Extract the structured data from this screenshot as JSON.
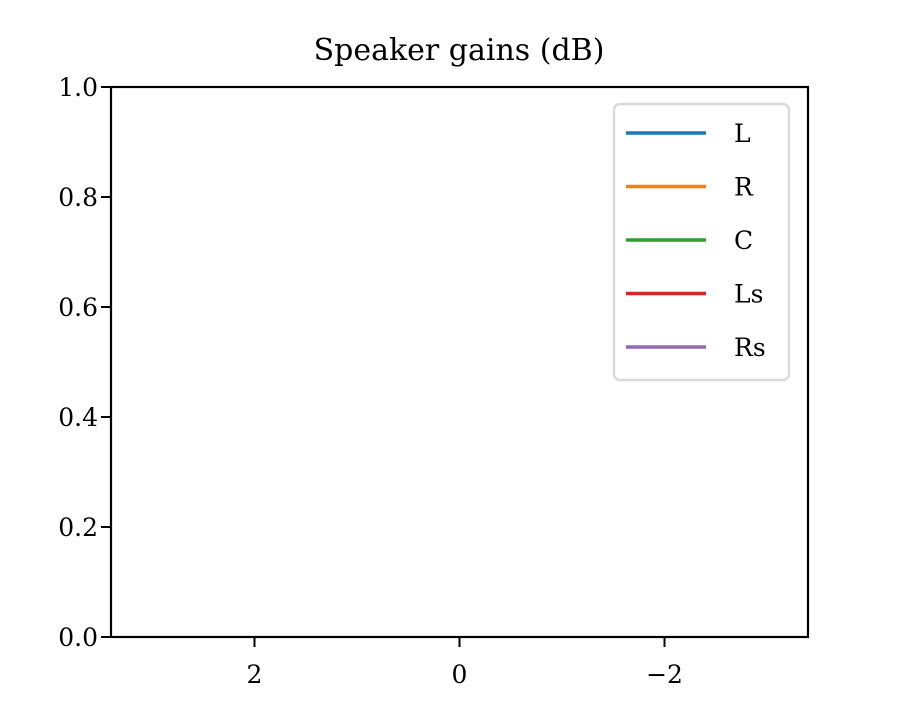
{
  "chart_data": {
    "type": "line",
    "title": "Speaker gains (dB)",
    "xlabel": "",
    "ylabel": "",
    "xlim": [
      3.4,
      -3.4
    ],
    "ylim": [
      0.0,
      1.0
    ],
    "x_inverted": true,
    "xticks": [
      2,
      0,
      -2
    ],
    "xtick_labels": [
      "2",
      "0",
      "−2"
    ],
    "yticks": [
      0.0,
      0.2,
      0.4,
      0.6,
      0.8,
      1.0
    ],
    "ytick_labels": [
      "0.0",
      "0.2",
      "0.4",
      "0.6",
      "0.8",
      "1.0"
    ],
    "grid": false,
    "legend_position": "top-right",
    "series": [
      {
        "name": "L",
        "color": "#1f77b4",
        "x": [],
        "y": []
      },
      {
        "name": "R",
        "color": "#ff7f0e",
        "x": [],
        "y": []
      },
      {
        "name": "C",
        "color": "#2ca02c",
        "x": [],
        "y": []
      },
      {
        "name": "Ls",
        "color": "#d62728",
        "x": [],
        "y": []
      },
      {
        "name": "Rs",
        "color": "#9467bd",
        "x": [],
        "y": []
      }
    ]
  }
}
